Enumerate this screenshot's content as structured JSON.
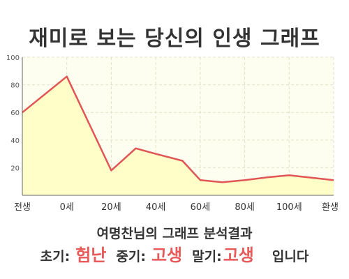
{
  "header": {
    "title": "재미로 보는 당신의 인생 그래프"
  },
  "chart_data": {
    "type": "area",
    "categories": [
      "전생",
      "0세",
      "20세",
      "40세",
      "60세",
      "80세",
      "100세",
      "환생"
    ],
    "y_ticks": [
      "20",
      "40",
      "60",
      "80",
      "100"
    ],
    "ylim": [
      0,
      100
    ],
    "grid": true,
    "series": [
      {
        "x": [
          0,
          1,
          2,
          2.55,
          3,
          3.6,
          4,
          4.5,
          5,
          5.5,
          6,
          7
        ],
        "values": [
          60,
          86,
          18,
          34,
          30,
          25,
          11,
          9.5,
          11,
          13,
          14.5,
          11
        ]
      }
    ],
    "colors": {
      "line": "#e05555",
      "fill": "#fffdc8",
      "plot_bg": "#fefef0",
      "grid": "#e2e2c8"
    }
  },
  "summary": {
    "title": "여명찬님의 그래프 분석결과",
    "early_label": "초기:",
    "early_value": "험난",
    "middle_label": "중기:",
    "middle_value": "고생",
    "late_label": "말기:",
    "late_value": "고생",
    "ending": "입니다"
  }
}
